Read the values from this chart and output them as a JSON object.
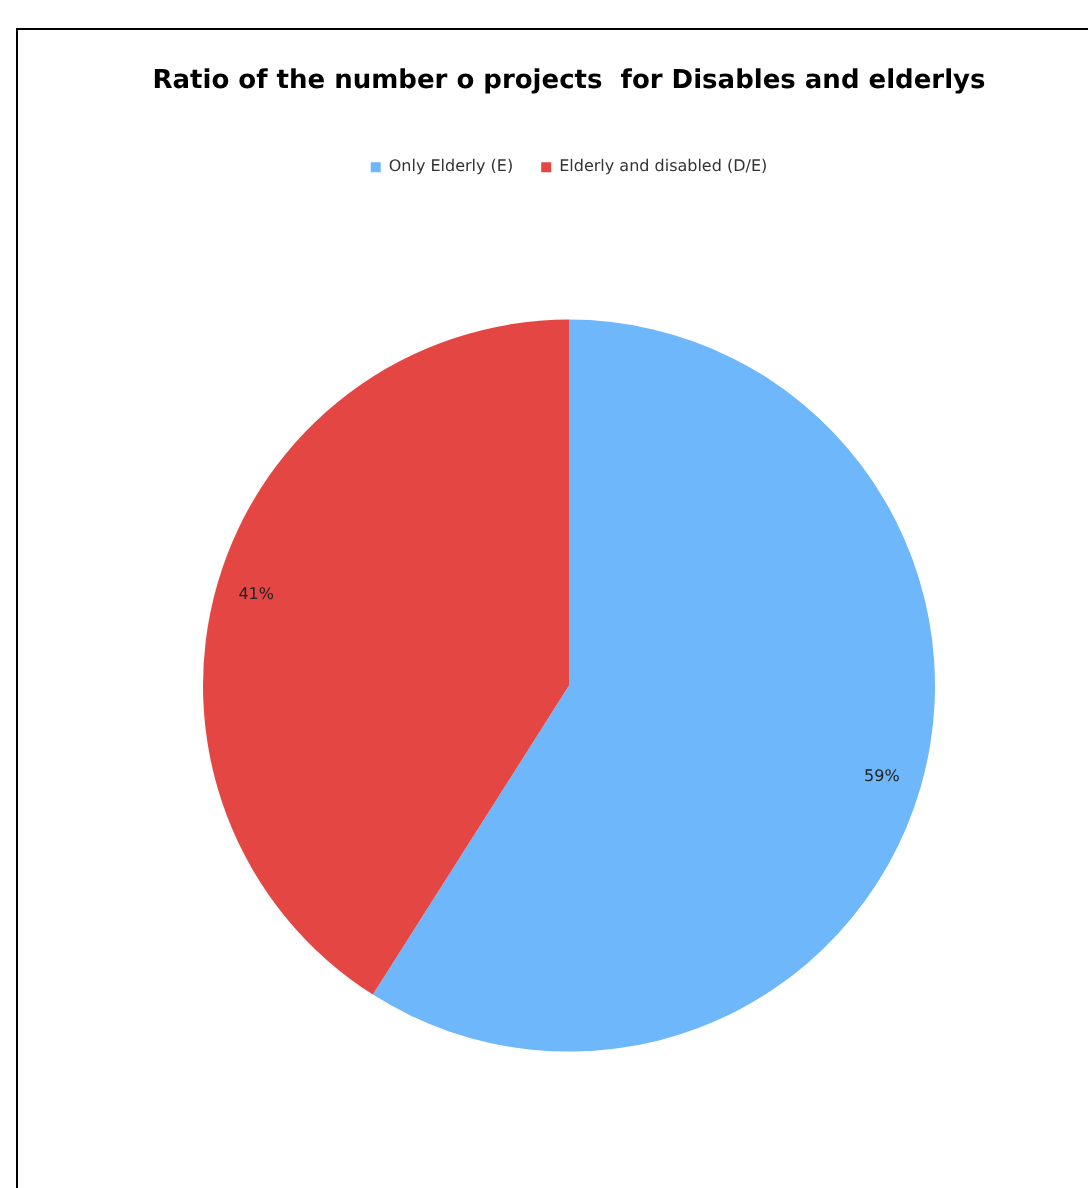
{
  "chart_data": {
    "type": "pie",
    "title": "Ratio of the number o projects  for Disables and elderlys",
    "categories": [
      "Only Elderly (E)",
      "Elderly and disabled (D/E)"
    ],
    "values": [
      59,
      41
    ],
    "colors": [
      "#6eb7fa",
      "#e44644"
    ],
    "value_labels": [
      "59%",
      "41%"
    ],
    "legend": "top"
  }
}
